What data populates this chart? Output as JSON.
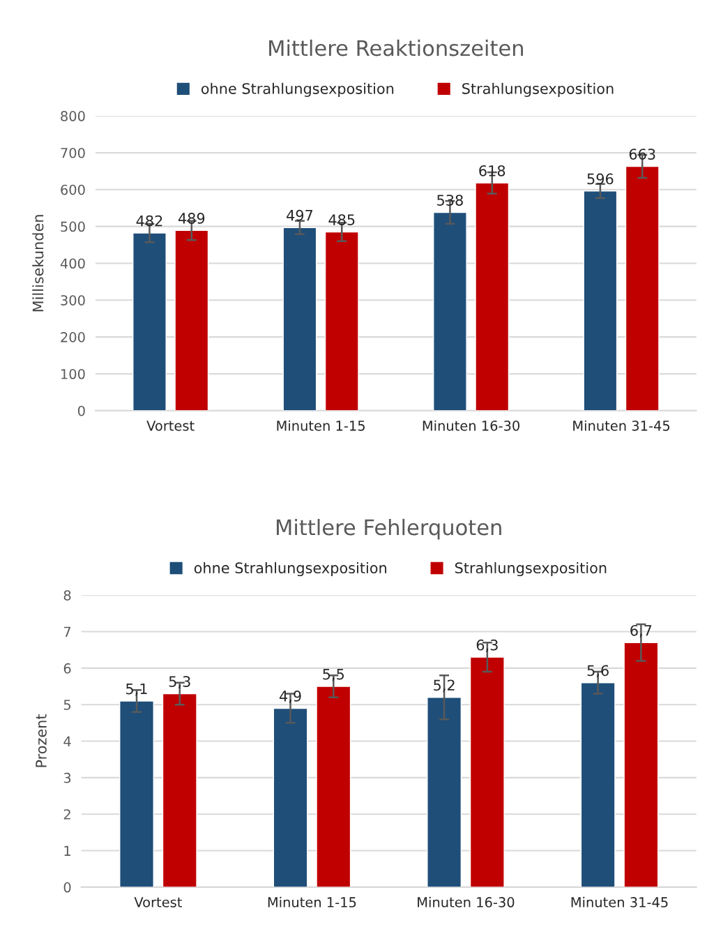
{
  "chart_data": [
    {
      "type": "bar",
      "title": "Mittlere Reaktionszeiten",
      "ylabel": "Millisekunden",
      "categories": [
        "Vortest",
        "Minuten 1-15",
        "Minuten 16-30",
        "Minuten 31-45"
      ],
      "series": [
        {
          "name": "ohne Strahlungsexposition",
          "color": "#1f4e79",
          "values": [
            482,
            497,
            538,
            596
          ],
          "errors": [
            25,
            18,
            31,
            19
          ]
        },
        {
          "name": "Strahlungsexposition",
          "color": "#c00000",
          "values": [
            489,
            485,
            618,
            663
          ],
          "errors": [
            26,
            25,
            29,
            31
          ]
        }
      ],
      "ylim": [
        0,
        800
      ],
      "yticks": [
        0,
        100,
        200,
        300,
        400,
        500,
        600,
        700,
        800
      ],
      "grid": "y",
      "legend": "top",
      "data_labels": true
    },
    {
      "type": "bar",
      "title": "Mittlere Fehlerquoten",
      "ylabel": "Prozent",
      "categories": [
        "Vortest",
        "Minuten 1-15",
        "Minuten 16-30",
        "Minuten 31-45"
      ],
      "series": [
        {
          "name": "ohne Strahlungsexposition",
          "color": "#1f4e79",
          "values": [
            5.1,
            4.9,
            5.2,
            5.6
          ],
          "errors": [
            0.3,
            0.4,
            0.6,
            0.3
          ],
          "value_labels": [
            "5,1",
            "4,9",
            "5,2",
            "5,6"
          ]
        },
        {
          "name": "Strahlungsexposition",
          "color": "#c00000",
          "values": [
            5.3,
            5.5,
            6.3,
            6.7
          ],
          "errors": [
            0.3,
            0.3,
            0.4,
            0.5
          ],
          "value_labels": [
            "5,3",
            "5,5",
            "6,3",
            "6,7"
          ]
        }
      ],
      "ylim": [
        0,
        8
      ],
      "yticks": [
        0,
        1,
        2,
        3,
        4,
        5,
        6,
        7,
        8
      ],
      "grid": "y",
      "legend": "top"
    }
  ]
}
